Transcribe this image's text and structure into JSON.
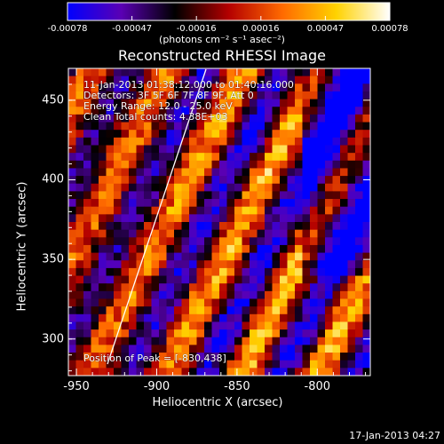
{
  "colorbar": {
    "ticks": [
      "-0.00078",
      "-0.00047",
      "-0.00016",
      "0.00016",
      "0.00047",
      "0.00078"
    ],
    "units": "(photons cm⁻² s⁻¹ asec⁻²)",
    "stops": [
      "#0000ff",
      "#5a00b4",
      "#000000",
      "#b40000",
      "#ff6a00",
      "#ffd200",
      "#ffffff"
    ]
  },
  "title": "Reconstructed RHESSI Image",
  "overlay": {
    "line1": "11-Jan-2013 01:38:12.000 to 01:40:16.000",
    "line2": "Detectors: 3F 5F 6F 7F 8F 9F, Att 0",
    "line3": "Energy Range: 12.0 - 25.0 keV",
    "line4": "Clean     Total counts: 4.38E+03",
    "peak": "Position of Peak = [-830,438]"
  },
  "axes": {
    "xlabel": "Heliocentric X (arcsec)",
    "ylabel": "Heliocentric Y (arcsec)",
    "xticks": [
      "-950",
      "-900",
      "-850",
      "-800"
    ],
    "yticks": [
      "450",
      "400",
      "350",
      "300"
    ],
    "xlim": [
      -955,
      -767
    ],
    "ylim": [
      277,
      470
    ]
  },
  "footer": "17-Jan-2013 04:27"
}
